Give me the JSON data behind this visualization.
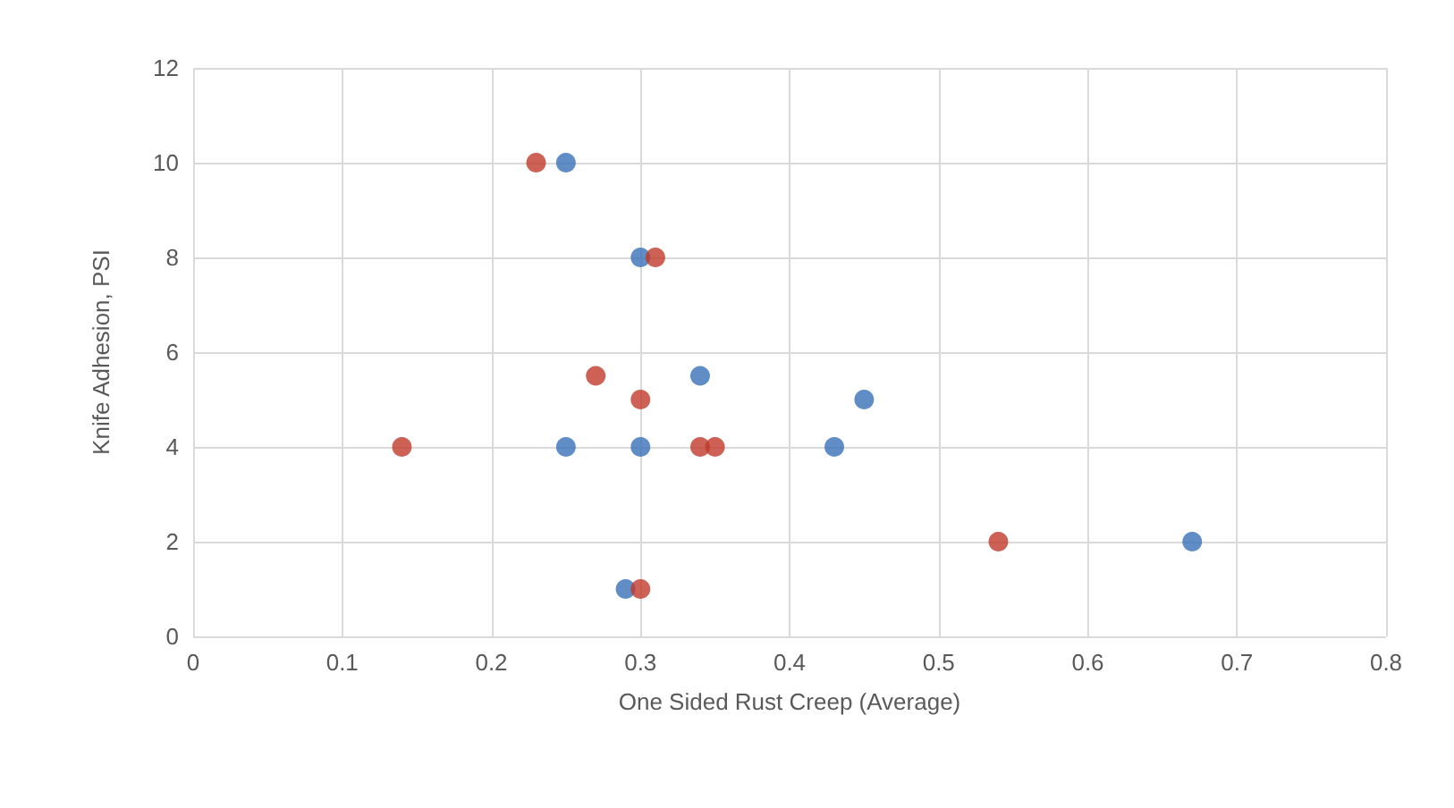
{
  "chart_data": {
    "type": "scatter",
    "xlabel": "One Sided Rust Creep (Average)",
    "ylabel": "Knife Adhesion, PSI",
    "series": [
      {
        "color": "#3a70b8",
        "x": [
          0.25,
          0.3,
          0.34,
          0.45,
          0.25,
          0.3,
          0.43,
          0.67,
          0.29
        ],
        "values": [
          10,
          8,
          5.5,
          5,
          4,
          4,
          4,
          2,
          1
        ]
      },
      {
        "color": "#c0392b",
        "x": [
          0.23,
          0.31,
          0.27,
          0.3,
          0.14,
          0.34,
          0.35,
          0.54,
          0.3
        ],
        "values": [
          10,
          8,
          5.5,
          5,
          4,
          4,
          4,
          2,
          1
        ]
      }
    ],
    "xlim": [
      0,
      0.8
    ],
    "xticks": [
      0,
      0.1,
      0.2,
      0.3,
      0.4,
      0.5,
      0.6,
      0.7,
      0.8
    ],
    "ylim": [
      0,
      12
    ],
    "yticks": [
      0,
      2,
      4,
      6,
      8,
      10,
      12
    ],
    "grid": true,
    "marker": "circle"
  }
}
